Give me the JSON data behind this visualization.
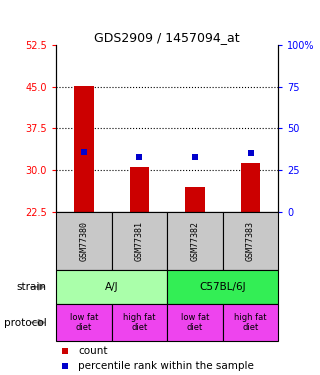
{
  "title": "GDS2909 / 1457094_at",
  "samples": [
    "GSM77380",
    "GSM77381",
    "GSM77382",
    "GSM77383"
  ],
  "bar_values": [
    45.2,
    30.5,
    27.0,
    31.2
  ],
  "percentile_values": [
    36.0,
    33.0,
    33.0,
    35.0
  ],
  "bar_color": "#cc0000",
  "percentile_color": "#0000cc",
  "ylim_left": [
    22.5,
    52.5
  ],
  "ylim_right": [
    0,
    100
  ],
  "yticks_left": [
    22.5,
    30,
    37.5,
    45,
    52.5
  ],
  "yticks_right": [
    0,
    25,
    50,
    75,
    100
  ],
  "hlines": [
    45,
    37.5,
    30
  ],
  "strain_labels": [
    [
      "A/J",
      0,
      2
    ],
    [
      "C57BL/6J",
      2,
      4
    ]
  ],
  "strain_colors": [
    "#aaffaa",
    "#33ee55"
  ],
  "protocol_labels": [
    "low fat\ndiet",
    "high fat\ndiet",
    "low fat\ndiet",
    "high fat\ndiet"
  ],
  "protocol_color": "#ee44ee",
  "strain_row_label": "strain",
  "protocol_row_label": "protocol",
  "legend_count_label": "count",
  "legend_percentile_label": "percentile rank within the sample",
  "bar_width": 0.35,
  "sample_cell_color": "#c8c8c8",
  "background_color": "#ffffff"
}
